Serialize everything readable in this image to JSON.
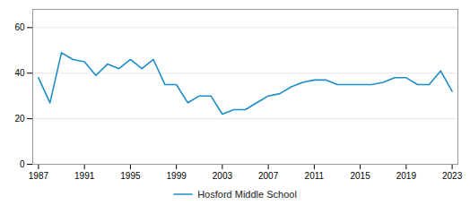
{
  "chart_data": {
    "type": "line",
    "x": [
      1987,
      1988,
      1989,
      1990,
      1991,
      1992,
      1993,
      1994,
      1995,
      1996,
      1997,
      1998,
      1999,
      2000,
      2001,
      2002,
      2003,
      2004,
      2005,
      2006,
      2007,
      2008,
      2009,
      2010,
      2011,
      2012,
      2013,
      2014,
      2015,
      2016,
      2017,
      2018,
      2019,
      2020,
      2021,
      2022,
      2023
    ],
    "series": [
      {
        "name": "Hosford Middle School",
        "color": "#1b8dc8",
        "values": [
          38,
          27,
          49,
          46,
          45,
          39,
          44,
          42,
          46,
          42,
          46,
          35,
          35,
          27,
          30,
          30,
          22,
          24,
          24,
          27,
          30,
          31,
          34,
          36,
          37,
          37,
          35,
          35,
          35,
          35,
          36,
          38,
          38,
          35,
          35,
          41,
          32
        ]
      }
    ],
    "xlim": [
      1986.5,
      2023.5
    ],
    "xticks": [
      1987,
      1991,
      1995,
      1999,
      2003,
      2007,
      2011,
      2015,
      2019,
      2023
    ],
    "ylim": [
      0,
      68
    ],
    "yticks": [
      0,
      20,
      40,
      60
    ],
    "grid": true,
    "legend": "bottom"
  }
}
